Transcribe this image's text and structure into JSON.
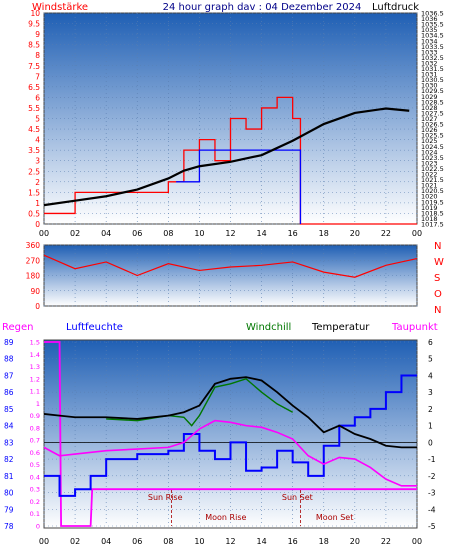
{
  "colors": {
    "panel_top": "#1f5fb4",
    "panel_bottom": "#ffffff",
    "wind_speed": "#ff0000",
    "wind_gust": "#0000ff",
    "pressure": "#000000",
    "temperature": "#000000",
    "humidity": "#0000ff",
    "windchill": "#007700",
    "dewpoint": "#ff00ff",
    "rain": "#ff00ff",
    "wind_dir": "#ff0000"
  },
  "chart_data": [
    {
      "type": "line",
      "title": "24 hour graph dav : 04 Dezember 2024",
      "left_label": "Windstärke",
      "right_label": "Luftdruck",
      "x_ticks": [
        "00",
        "02",
        "04",
        "06",
        "08",
        "10",
        "12",
        "14",
        "16",
        "18",
        "20",
        "22",
        "00"
      ],
      "y_left_ticks": [
        "10",
        "9.5",
        "9",
        "8.5",
        "8",
        "7.5",
        "7",
        "6.5",
        "6",
        "5.5",
        "5",
        "4.5",
        "4",
        "3.5",
        "3",
        "2.5",
        "2",
        "1.5",
        "1",
        "0.5",
        "0"
      ],
      "y_left_range": [
        0,
        10
      ],
      "y_right_ticks": [
        "1036.5",
        "1036",
        "1035.5",
        "1035",
        "1034.5",
        "1034",
        "1033.5",
        "1033",
        "1032.5",
        "1032",
        "1031.5",
        "1031",
        "1030.5",
        "1030",
        "1029.5",
        "1029",
        "1028.5",
        "1028",
        "1027.5",
        "1027",
        "1026.5",
        "1026",
        "1025.5",
        "1025",
        "1024.5",
        "1024",
        "1023.5",
        "1023",
        "1022.5",
        "1022",
        "1021.5",
        "1021",
        "1020.5",
        "1020",
        "1019.5",
        "1019",
        "1018.5",
        "1018",
        "1017.5"
      ],
      "y_right_range": [
        1017.5,
        1036.5
      ],
      "series": [
        {
          "key": "pressure",
          "x": [
            0,
            2,
            4,
            6,
            8,
            9,
            10,
            12,
            14,
            16,
            18,
            20,
            22,
            23.5
          ],
          "values": [
            1019.2,
            1019.6,
            1020.0,
            1020.6,
            1021.6,
            1022.3,
            1022.7,
            1023.1,
            1023.7,
            1025.0,
            1026.5,
            1027.5,
            1027.9,
            1027.7
          ]
        },
        {
          "key": "wind_speed",
          "x": [
            0,
            2,
            4,
            6,
            8,
            9,
            10,
            11,
            12,
            13,
            14,
            15,
            16,
            16.5,
            17,
            24
          ],
          "values": [
            0.5,
            1.5,
            1.5,
            1.5,
            2.0,
            3.5,
            4.0,
            3.0,
            5.0,
            4.5,
            5.5,
            6.0,
            5.0,
            0.0,
            0.0,
            0.0
          ]
        },
        {
          "key": "wind_gust",
          "x": [
            8.5,
            10,
            12,
            14,
            16,
            16.5
          ],
          "values": [
            2.0,
            3.5,
            3.5,
            3.5,
            3.5,
            0.0
          ]
        }
      ]
    },
    {
      "type": "line",
      "x_ticks": [],
      "y_left_ticks": [
        "360",
        "270",
        "180",
        "90",
        "0"
      ],
      "y_left_range": [
        0,
        360
      ],
      "right_labels": [
        "N",
        "W",
        "S",
        "O",
        "N"
      ],
      "series": [
        {
          "key": "wind_dir",
          "x": [
            0,
            2,
            4,
            6,
            8,
            10,
            12,
            14,
            16,
            18,
            20,
            22,
            24
          ],
          "values": [
            300,
            220,
            260,
            180,
            250,
            210,
            230,
            240,
            260,
            200,
            170,
            240,
            280
          ]
        }
      ]
    },
    {
      "type": "line",
      "labels": [
        "Regen",
        "Luftfeuchte",
        "Windchill",
        "Temperatur",
        "Taupunkt"
      ],
      "x_ticks": [
        "00",
        "02",
        "04",
        "06",
        "08",
        "10",
        "12",
        "14",
        "16",
        "18",
        "20",
        "22",
        "00"
      ],
      "y_hum_ticks": [
        "89",
        "88",
        "87",
        "86",
        "85",
        "84",
        "83",
        "82",
        "81",
        "80",
        "79",
        "78"
      ],
      "y_hum_range": [
        78,
        89
      ],
      "y_rain_ticks": [
        "1.5",
        "1.4",
        "1.3",
        "1.2",
        "1.1",
        "1",
        "0.9",
        "0.8",
        "0.7",
        "0.6",
        "0.5",
        "0.4",
        "0.3",
        "0.2",
        "0.1",
        "0"
      ],
      "y_rain_range": [
        0,
        1.5
      ],
      "y_temp_ticks": [
        "6",
        "5",
        "4",
        "3",
        "2",
        "1",
        "0",
        "-1",
        "-2",
        "-3",
        "-4",
        "-5"
      ],
      "y_temp_range": [
        -5,
        6
      ],
      "annotations": [
        "Sun Rise",
        "Sun Set",
        "Moon Rise",
        "Moon Set"
      ],
      "series": [
        {
          "key": "temperature",
          "x": [
            0,
            1,
            2,
            4,
            6,
            8,
            9,
            10,
            11,
            12,
            13,
            14,
            15,
            16,
            17,
            18,
            19,
            20,
            21,
            22,
            23,
            24
          ],
          "values": [
            1.7,
            1.6,
            1.5,
            1.5,
            1.4,
            1.6,
            1.8,
            2.2,
            3.5,
            3.8,
            3.9,
            3.7,
            3.0,
            2.2,
            1.5,
            0.6,
            1.0,
            0.5,
            0.2,
            -0.2,
            -0.3,
            -0.3
          ]
        },
        {
          "key": "dewpoint",
          "x": [
            0,
            1,
            2,
            4,
            6,
            8,
            9,
            10,
            11,
            12,
            13,
            14,
            15,
            16,
            17,
            18,
            19,
            20,
            21,
            22,
            23,
            24
          ],
          "values": [
            -0.3,
            -0.8,
            -0.7,
            -0.5,
            -0.4,
            -0.3,
            0.0,
            0.8,
            1.3,
            1.2,
            1.0,
            0.9,
            0.6,
            0.2,
            -0.8,
            -1.3,
            -0.9,
            -1.0,
            -1.5,
            -2.2,
            -2.6,
            -2.6
          ]
        },
        {
          "key": "windchill",
          "x": [
            4,
            6,
            8,
            9,
            9.5,
            10,
            11,
            12,
            13,
            14,
            15,
            16
          ],
          "values": [
            1.4,
            1.3,
            1.6,
            1.5,
            1.0,
            1.6,
            3.3,
            3.5,
            3.8,
            3.0,
            2.3,
            1.8
          ]
        },
        {
          "key": "humidity",
          "x": [
            0,
            1,
            2,
            3,
            4,
            6,
            8,
            9,
            10,
            11,
            12,
            13,
            14,
            15,
            16,
            17,
            18,
            19,
            20,
            21,
            22,
            23,
            24
          ],
          "values": [
            81,
            79.8,
            80.2,
            81,
            82,
            82.3,
            82.5,
            83.5,
            82.5,
            82,
            83,
            81.3,
            81.5,
            82.5,
            81.8,
            81,
            82.8,
            84,
            84.5,
            85,
            86,
            87,
            87
          ]
        },
        {
          "key": "rain",
          "x": [
            0,
            1,
            1.1,
            3,
            3.1,
            24
          ],
          "values": [
            1.5,
            1.5,
            0.0,
            0.0,
            0.3,
            0.3
          ]
        }
      ]
    }
  ]
}
